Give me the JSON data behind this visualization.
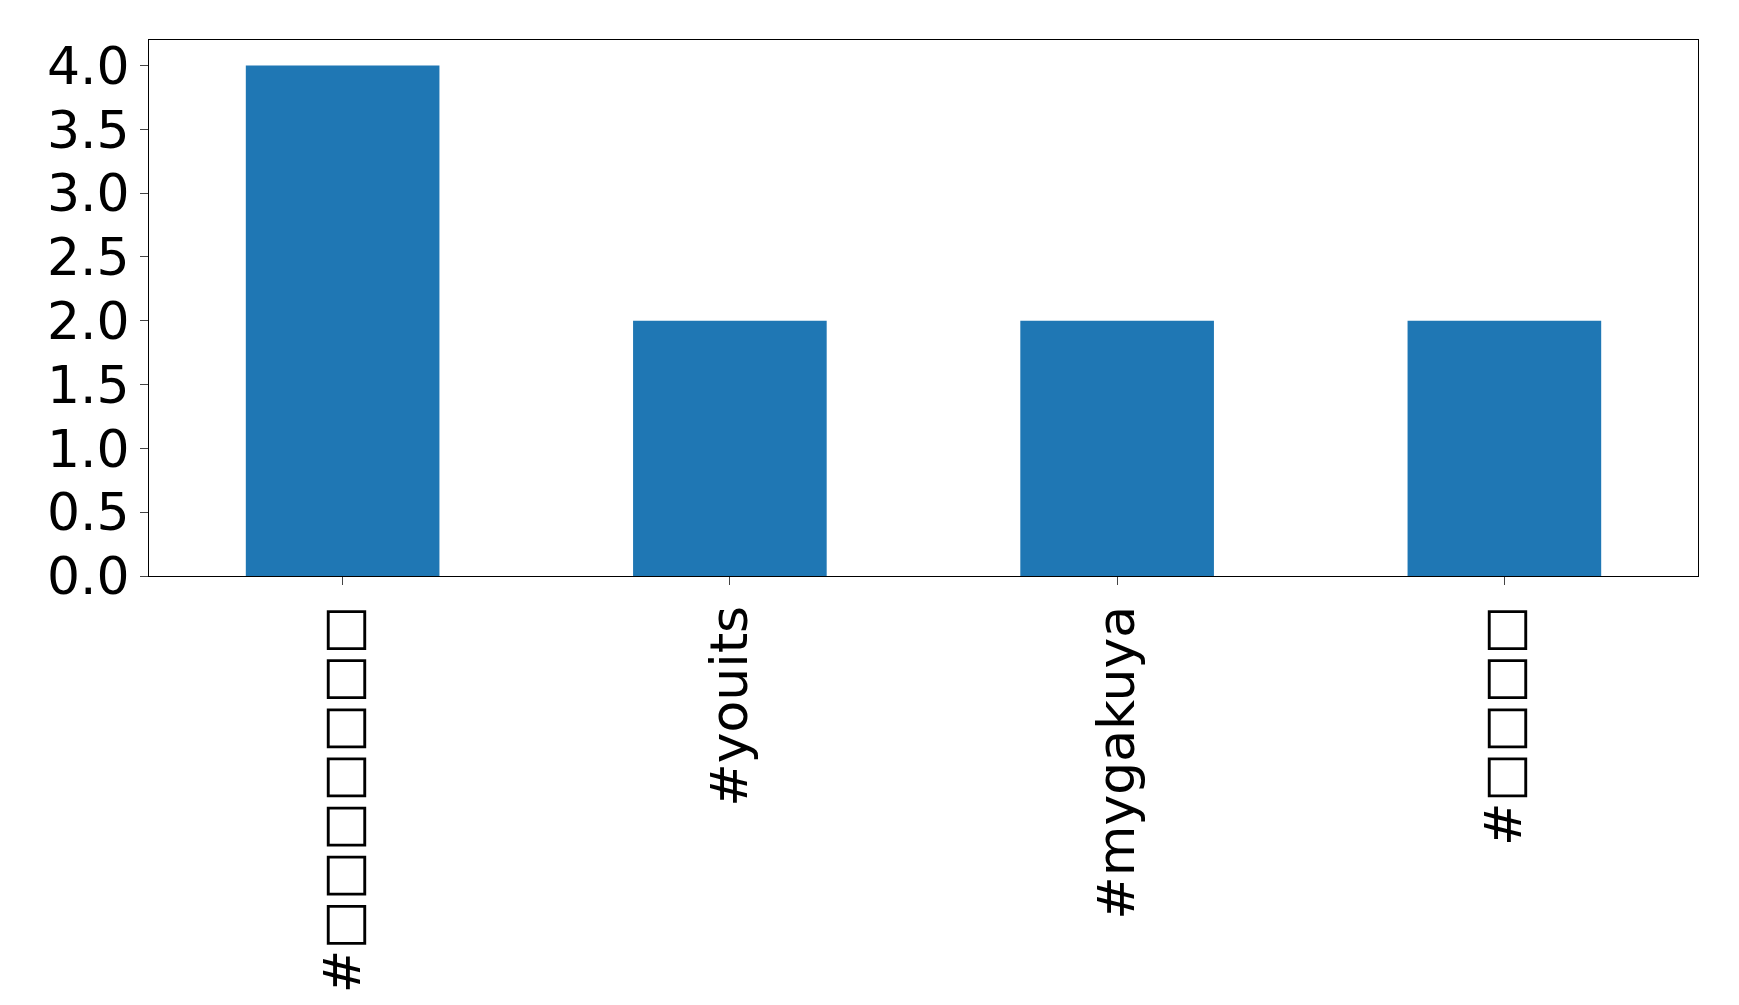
{
  "chart_data": {
    "type": "bar",
    "categories": [
      "#□□□□□□□",
      "#youits",
      "#mygakuya",
      "#□□□□"
    ],
    "values": [
      4,
      2,
      2,
      2
    ],
    "color": "#1f77b4",
    "ylim": [
      0,
      4.2
    ],
    "yticks": [
      {
        "value": 0,
        "label": "0.0"
      },
      {
        "value": 0.5,
        "label": "0.5"
      },
      {
        "value": 1,
        "label": "1.0"
      },
      {
        "value": 1.5,
        "label": "1.5"
      },
      {
        "value": 2,
        "label": "2.0"
      },
      {
        "value": 2.5,
        "label": "2.5"
      },
      {
        "value": 3,
        "label": "3.0"
      },
      {
        "value": 3.5,
        "label": "3.5"
      },
      {
        "value": 4,
        "label": "4.0"
      }
    ],
    "legend": false
  }
}
